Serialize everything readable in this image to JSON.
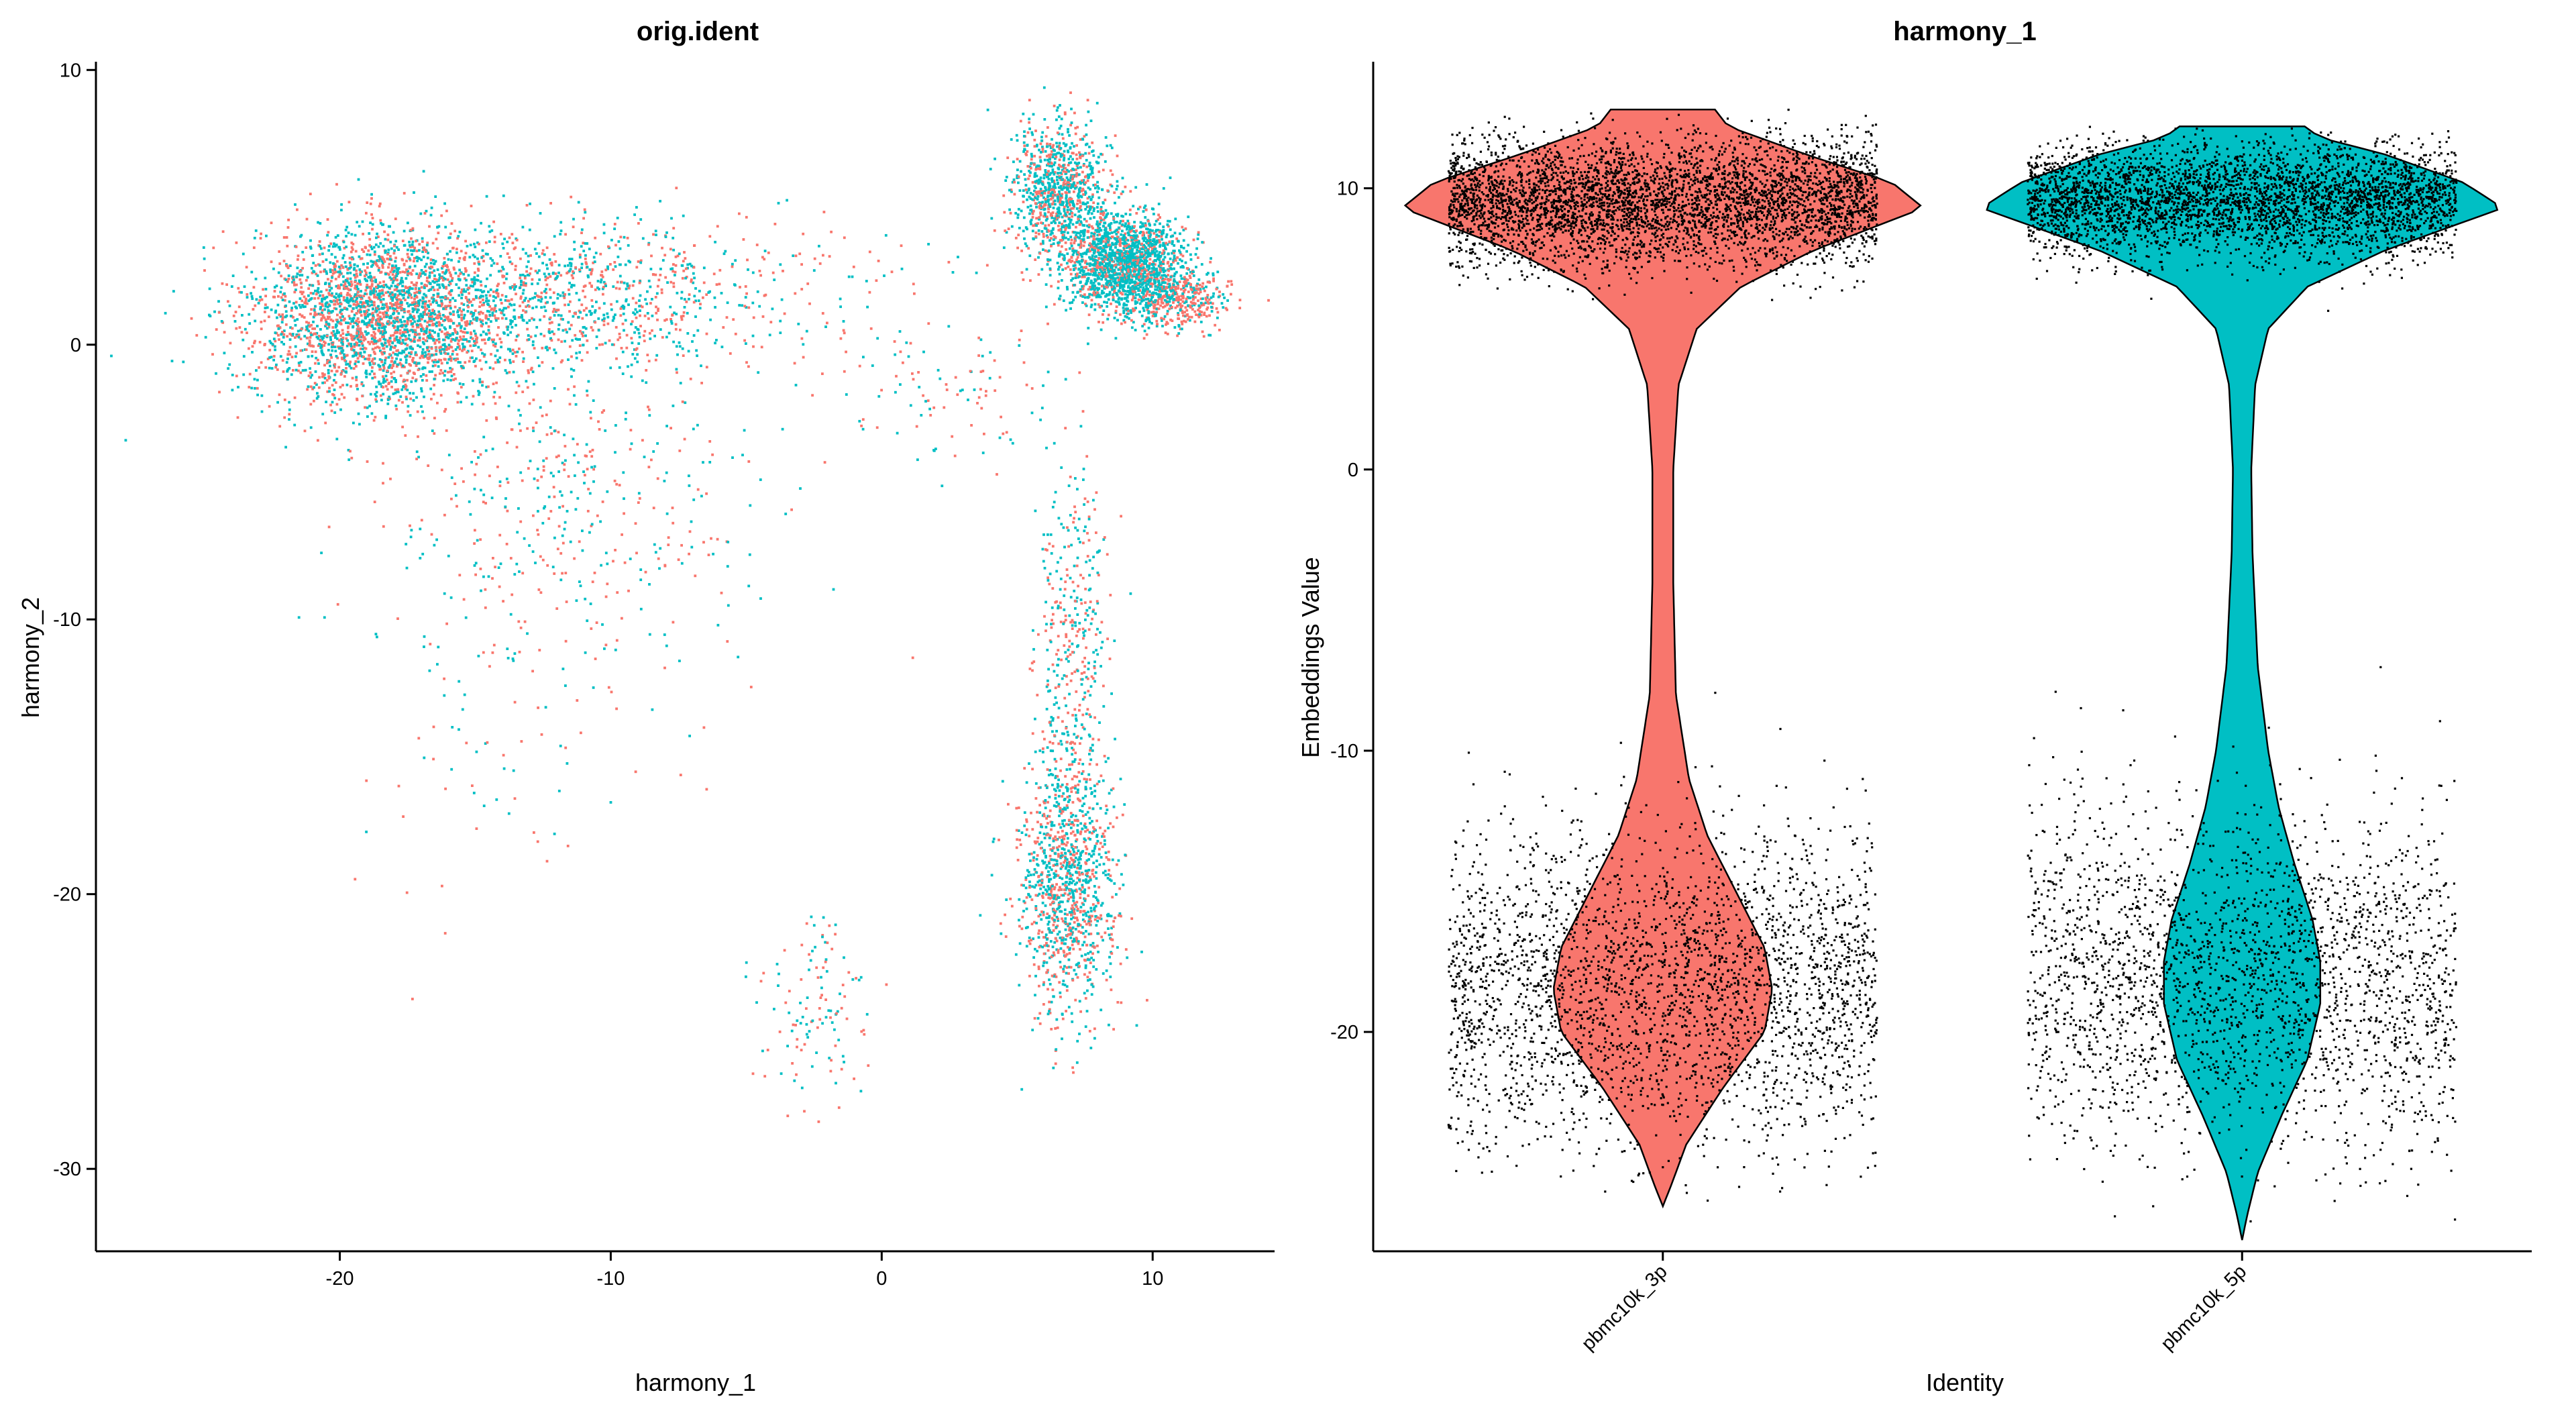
{
  "chart_data": [
    {
      "type": "scatter",
      "title": "orig.ident",
      "xlabel": "harmony_1",
      "ylabel": "harmony_2",
      "xlim": [
        -29,
        14.5
      ],
      "ylim": [
        -33,
        10.3
      ],
      "xticks": [
        -20,
        -10,
        0,
        10
      ],
      "yticks": [
        -30,
        -20,
        -10,
        0,
        10
      ],
      "grid": false,
      "legend": "none",
      "series": [
        {
          "name": "pbmc10k_3p",
          "color": "#F8766D"
        },
        {
          "name": "pbmc10k_5p",
          "color": "#00BFC4"
        }
      ],
      "clusters": [
        {
          "name": "left-cloud",
          "center": [
            -18.5,
            1.0
          ],
          "spread": [
            2.4,
            1.6
          ],
          "points": {
            "pbmc10k_3p": 1300,
            "pbmc10k_5p": 1400
          }
        },
        {
          "name": "left-tail",
          "center": [
            -12,
            1.8
          ],
          "spread": [
            3.5,
            1.3
          ],
          "points": {
            "pbmc10k_3p": 400,
            "pbmc10k_5p": 550
          }
        },
        {
          "name": "top-right-upper",
          "center": [
            6.6,
            5.6
          ],
          "spread": [
            0.9,
            1.2
          ],
          "points": {
            "pbmc10k_3p": 350,
            "pbmc10k_5p": 600
          }
        },
        {
          "name": "top-right-core",
          "center": [
            9.0,
            2.9
          ],
          "spread": [
            1.1,
            0.9
          ],
          "points": {
            "pbmc10k_3p": 400,
            "pbmc10k_5p": 1300
          }
        },
        {
          "name": "top-right-edge",
          "center": [
            11.0,
            1.6
          ],
          "spread": [
            0.9,
            0.5
          ],
          "points": {
            "pbmc10k_3p": 250,
            "pbmc10k_5p": 100
          }
        },
        {
          "name": "right-stalk",
          "center": [
            7.0,
            -11.5
          ],
          "spread": [
            0.7,
            3.5
          ],
          "points": {
            "pbmc10k_3p": 200,
            "pbmc10k_5p": 250
          }
        },
        {
          "name": "right-lower",
          "center": [
            6.8,
            -20.0
          ],
          "spread": [
            0.9,
            2.2
          ],
          "points": {
            "pbmc10k_3p": 450,
            "pbmc10k_5p": 600
          }
        },
        {
          "name": "bottom-small",
          "center": [
            -2.5,
            -24.0
          ],
          "spread": [
            1.2,
            1.7
          ],
          "points": {
            "pbmc10k_3p": 60,
            "pbmc10k_5p": 60
          }
        },
        {
          "name": "bridge",
          "center": [
            -4,
            2.0
          ],
          "spread": [
            4.5,
            1.5
          ],
          "points": {
            "pbmc10k_3p": 80,
            "pbmc10k_5p": 60
          }
        },
        {
          "name": "middle-scatter",
          "center": [
            -12,
            -6.0
          ],
          "spread": [
            3.5,
            3.5
          ],
          "points": {
            "pbmc10k_3p": 250,
            "pbmc10k_5p": 230
          }
        },
        {
          "name": "lower-left-scatter",
          "center": [
            -14,
            -15.0
          ],
          "spread": [
            3.0,
            3.0
          ],
          "points": {
            "pbmc10k_3p": 35,
            "pbmc10k_5p": 25
          }
        },
        {
          "name": "diagonal",
          "center": [
            2.5,
            -2.0
          ],
          "spread": [
            2.0,
            1.2
          ],
          "points": {
            "pbmc10k_3p": 50,
            "pbmc10k_5p": 40
          }
        }
      ]
    },
    {
      "type": "violin",
      "title": "harmony_1",
      "xlabel": "Identity",
      "ylabel": "Embeddings Value",
      "ylim": [
        -27.8,
        14.5
      ],
      "yticks": [
        -20,
        -10,
        0,
        10
      ],
      "categories": [
        "pbmc10k_3p",
        "pbmc10k_5p"
      ],
      "grid": false,
      "legend": "none",
      "series": [
        {
          "name": "pbmc10k_3p",
          "color": "#F8766D",
          "min": -26.2,
          "max": 12.8,
          "jitter_points": 7000,
          "upper_mode": {
            "center": 9.5,
            "spread": 1.1,
            "weight": 0.6
          },
          "lower_mode": {
            "center": -18.5,
            "spread": 2.8,
            "weight": 0.4
          },
          "density_profile": [
            [
              -26.2,
              0.0
            ],
            [
              -25.5,
              0.03
            ],
            [
              -24.0,
              0.09
            ],
            [
              -22.0,
              0.23
            ],
            [
              -20.0,
              0.39
            ],
            [
              -18.5,
              0.42
            ],
            [
              -17.0,
              0.39
            ],
            [
              -15.0,
              0.28
            ],
            [
              -13.0,
              0.17
            ],
            [
              -11.0,
              0.1
            ],
            [
              -8.0,
              0.05
            ],
            [
              -4.0,
              0.04
            ],
            [
              0.0,
              0.04
            ],
            [
              3.0,
              0.06
            ],
            [
              5.0,
              0.13
            ],
            [
              6.5,
              0.3
            ],
            [
              7.8,
              0.58
            ],
            [
              8.8,
              0.86
            ],
            [
              9.3,
              1.0
            ],
            [
              10.2,
              0.88
            ],
            [
              11.2,
              0.55
            ],
            [
              12.2,
              0.25
            ],
            [
              12.8,
              0.2
            ]
          ]
        },
        {
          "name": "pbmc10k_5p",
          "color": "#00BFC4",
          "min": -27.4,
          "max": 12.2,
          "jitter_points": 6200,
          "upper_mode": {
            "center": 9.6,
            "spread": 1.0,
            "weight": 0.6
          },
          "lower_mode": {
            "center": -18.0,
            "spread": 3.0,
            "weight": 0.4
          },
          "density_profile": [
            [
              -27.4,
              0.0
            ],
            [
              -26.5,
              0.02
            ],
            [
              -25.0,
              0.06
            ],
            [
              -23.0,
              0.15
            ],
            [
              -21.0,
              0.25
            ],
            [
              -19.0,
              0.3
            ],
            [
              -17.5,
              0.3
            ],
            [
              -16.0,
              0.27
            ],
            [
              -14.0,
              0.2
            ],
            [
              -12.0,
              0.14
            ],
            [
              -10.0,
              0.1
            ],
            [
              -7.0,
              0.06
            ],
            [
              -3.0,
              0.04
            ],
            [
              0.0,
              0.035
            ],
            [
              3.0,
              0.05
            ],
            [
              5.0,
              0.1
            ],
            [
              6.5,
              0.25
            ],
            [
              7.8,
              0.55
            ],
            [
              8.8,
              0.85
            ],
            [
              9.3,
              1.0
            ],
            [
              10.2,
              0.85
            ],
            [
              11.2,
              0.55
            ],
            [
              11.8,
              0.3
            ],
            [
              12.2,
              0.24
            ]
          ]
        }
      ]
    }
  ]
}
